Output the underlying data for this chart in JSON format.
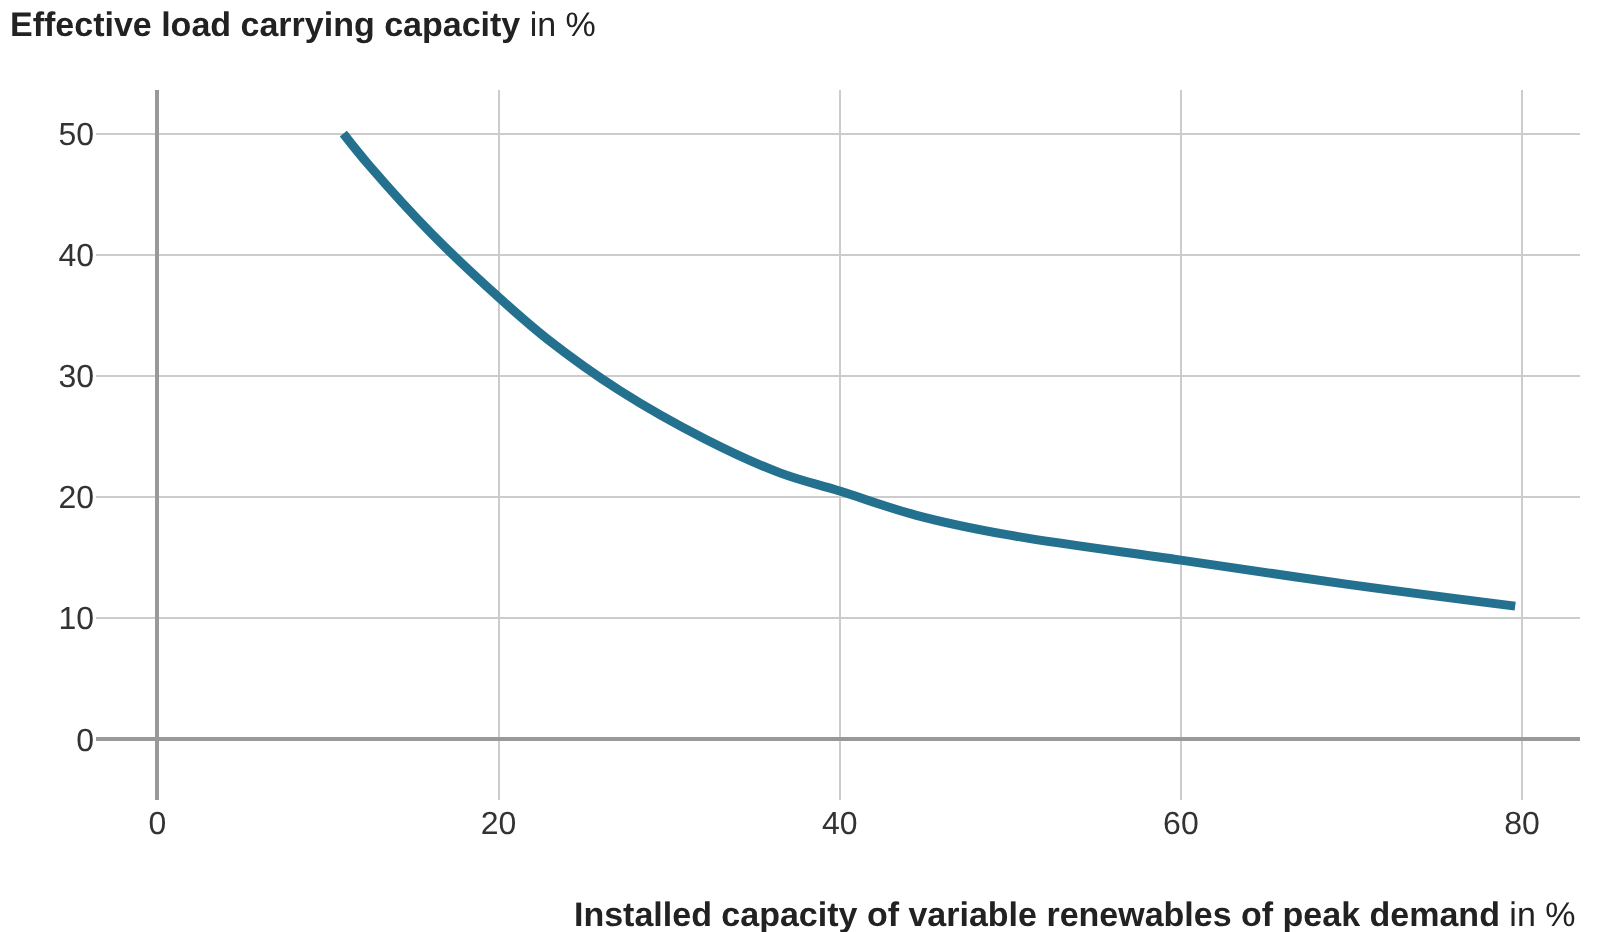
{
  "chart_data": {
    "type": "line",
    "title": "Effective load carrying capacity in %",
    "xlabel": "Installed capacity of variable renewables of peak demand in %",
    "series": [
      {
        "color": "#23708f",
        "x": [
          10.9,
          12.4,
          16.1,
          20,
          22.9,
          27.1,
          32.1,
          36.5,
          40,
          44.5,
          49.8,
          60,
          69.8,
          79.6
        ],
        "values": [
          50,
          47.4,
          41.7,
          36.5,
          33,
          28.8,
          24.8,
          22,
          20.5,
          18.5,
          16.9,
          14.8,
          12.8,
          11
        ]
      }
    ],
    "xlim": [
      -3.6,
      83.4
    ],
    "ylim": [
      -5,
      53.6
    ],
    "xticks": [
      0,
      20,
      40,
      60,
      80
    ],
    "yticks": [
      0,
      10,
      20,
      30,
      40,
      50
    ],
    "grid": true,
    "legend": false,
    "marker": "none",
    "line_style": "solid"
  }
}
